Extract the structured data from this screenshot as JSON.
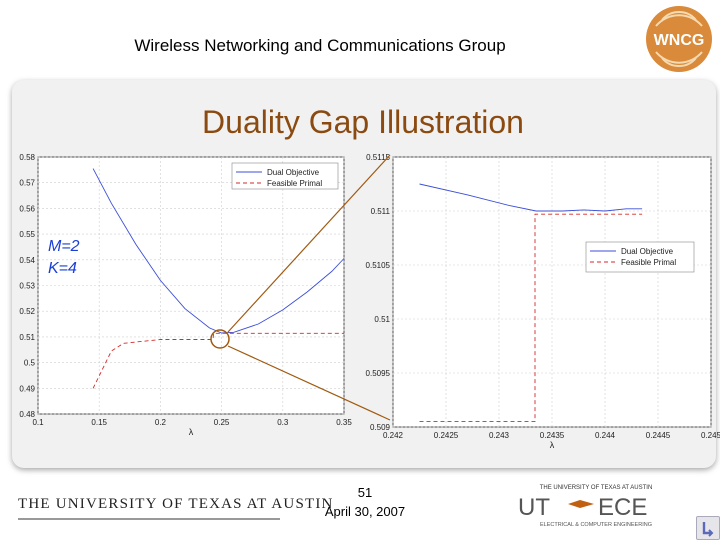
{
  "header": {
    "group_name": "Wireless Networking and Communications Group",
    "logo_text": "WNCG"
  },
  "slide": {
    "title": "Duality Gap Illustration",
    "annotation_m": "M=2",
    "annotation_k": "K=4"
  },
  "footer": {
    "university": "THE UNIVERSITY OF TEXAS AT AUSTIN",
    "page_number": "51",
    "date": "April 30, 2007",
    "utece_ut": "UT",
    "utece_ece": "ECE",
    "utece_top": "THE UNIVERSITY OF TEXAS AT AUSTIN",
    "utece_bottom": "ELECTRICAL & COMPUTER ENGINEERING"
  },
  "colors": {
    "title": "#8a4a10",
    "annotation": "#1a3fd6",
    "dual": "#3b4fd6",
    "primal": "#d62828",
    "zoom_lines": "#a05a10"
  },
  "chart_data": [
    {
      "type": "line",
      "xlabel": "λ",
      "ylabel": "",
      "xlim": [
        0.1,
        0.35
      ],
      "ylim": [
        0.48,
        0.58
      ],
      "xticks": [
        "0.1",
        "0.15",
        "0.2",
        "0.25",
        "0.3",
        "0.35"
      ],
      "yticks": [
        "0.48",
        "0.49",
        "0.5",
        "0.51",
        "0.52",
        "0.53",
        "0.54",
        "0.55",
        "0.56",
        "0.57",
        "0.58"
      ],
      "legend_position": "top-right",
      "series": [
        {
          "name": "Dual Objective",
          "style": "solid",
          "x": [
            0.145,
            0.16,
            0.18,
            0.2,
            0.22,
            0.24,
            0.25,
            0.26,
            0.28,
            0.3,
            0.32,
            0.34,
            0.35
          ],
          "y": [
            0.5755,
            0.562,
            0.546,
            0.532,
            0.521,
            0.5135,
            0.5115,
            0.5118,
            0.515,
            0.5205,
            0.5275,
            0.5355,
            0.5405
          ]
        },
        {
          "name": "Feasible Primal",
          "style": "dashed",
          "x": [
            0.145,
            0.16,
            0.17,
            0.2,
            0.243,
            0.2435,
            0.35
          ],
          "y": [
            0.49,
            0.5045,
            0.5075,
            0.509,
            0.509,
            0.5114,
            0.5114
          ]
        }
      ]
    },
    {
      "type": "line",
      "xlabel": "λ",
      "ylabel": "",
      "xlim": [
        0.242,
        0.245
      ],
      "ylim": [
        0.509,
        0.5115
      ],
      "xticks": [
        "0.242",
        "0.2425",
        "0.243",
        "0.2435",
        "0.244",
        "0.2445",
        "0.245"
      ],
      "yticks": [
        "0.509",
        "0.5095",
        "0.51",
        "0.5105",
        "0.511",
        "0.5115"
      ],
      "legend_position": "center-right",
      "series": [
        {
          "name": "Dual Objective",
          "style": "solid",
          "x": [
            0.24225,
            0.2427,
            0.2431,
            0.24335,
            0.2436,
            0.2438,
            0.244,
            0.2442,
            0.24435
          ],
          "y": [
            0.51125,
            0.51115,
            0.51105,
            0.511,
            0.511,
            0.51101,
            0.511,
            0.51102,
            0.51102
          ]
        },
        {
          "name": "Feasible Primal",
          "style": "dashed",
          "x": [
            0.24225,
            0.24334,
            0.24334,
            0.2436,
            0.2438,
            0.244,
            0.2442,
            0.24435
          ],
          "y": [
            0.50905,
            0.50905,
            0.51097,
            0.51097,
            0.51097,
            0.51097,
            0.51097,
            0.51097
          ]
        }
      ]
    }
  ]
}
